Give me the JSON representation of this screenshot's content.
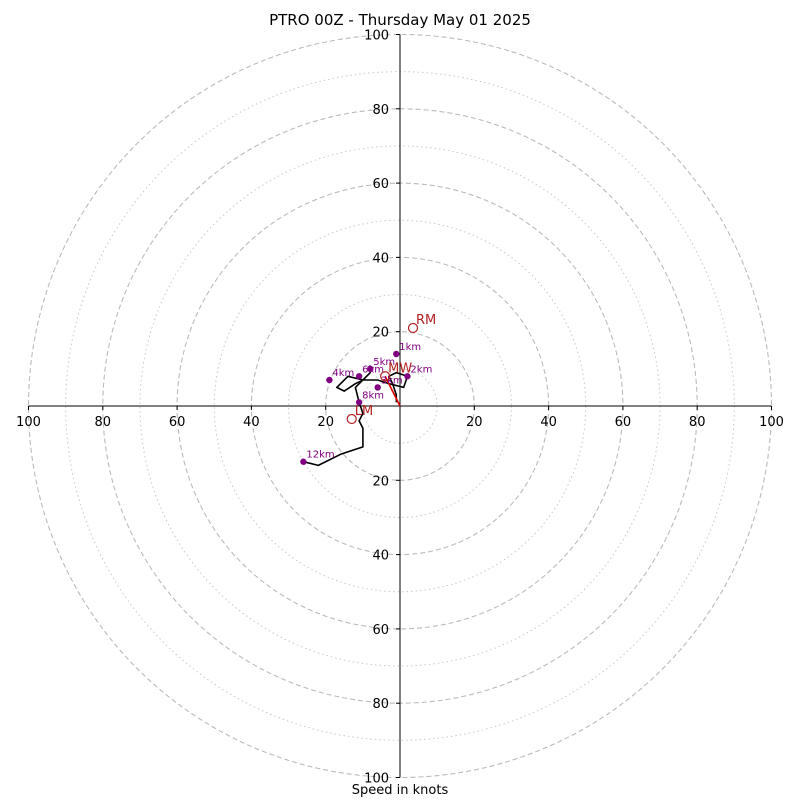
{
  "chart_data": {
    "type": "scatter",
    "title": "PTRO 00Z - Thursday May 01 2025",
    "xlabel": "Speed in knots",
    "ylabel": "",
    "xlim": [
      -100,
      100
    ],
    "ylim": [
      -100,
      100
    ],
    "rings_major": [
      20,
      40,
      60,
      80,
      100
    ],
    "rings_minor": [
      10,
      30,
      50,
      70,
      90
    ],
    "grid": true,
    "x_ticks": [
      {
        "v": -100,
        "label": "100"
      },
      {
        "v": -80,
        "label": "80"
      },
      {
        "v": -60,
        "label": "60"
      },
      {
        "v": -40,
        "label": "40"
      },
      {
        "v": -20,
        "label": "20"
      },
      {
        "v": 20,
        "label": "20"
      },
      {
        "v": 40,
        "label": "40"
      },
      {
        "v": 60,
        "label": "60"
      },
      {
        "v": 80,
        "label": "80"
      },
      {
        "v": 100,
        "label": "100"
      }
    ],
    "y_ticks": [
      {
        "v": 100,
        "label": "100"
      },
      {
        "v": 80,
        "label": "80"
      },
      {
        "v": 60,
        "label": "60"
      },
      {
        "v": 40,
        "label": "40"
      },
      {
        "v": 20,
        "label": "20"
      },
      {
        "v": -20,
        "label": "20"
      },
      {
        "v": -40,
        "label": "40"
      },
      {
        "v": -60,
        "label": "60"
      },
      {
        "v": -80,
        "label": "80"
      },
      {
        "v": -100,
        "label": "100"
      }
    ],
    "hodograph": [
      [
        -1,
        1
      ],
      [
        -1,
        3
      ],
      [
        -2,
        6
      ],
      [
        -3,
        8
      ],
      [
        -1,
        9
      ],
      [
        2,
        8
      ],
      [
        1,
        5
      ],
      [
        -3,
        6
      ],
      [
        -6,
        7
      ],
      [
        -10,
        7
      ],
      [
        -14,
        8
      ],
      [
        -17,
        5
      ],
      [
        -15,
        4
      ],
      [
        -12,
        6
      ],
      [
        -10,
        7
      ],
      [
        -8,
        9
      ],
      [
        -12,
        5
      ],
      [
        -11,
        1
      ],
      [
        -10,
        -2
      ],
      [
        -11,
        -4
      ],
      [
        -10,
        -6
      ],
      [
        -10,
        -11
      ],
      [
        -16,
        -13
      ],
      [
        -22,
        -16
      ],
      [
        -26,
        -15
      ]
    ],
    "height_markers": [
      {
        "label": "1km",
        "x": -1,
        "y": 14
      },
      {
        "label": "2km",
        "x": 2,
        "y": 8
      },
      {
        "label": "3km",
        "x": -6,
        "y": 5
      },
      {
        "label": "4km",
        "x": -19,
        "y": 7
      },
      {
        "label": "5km",
        "x": -8,
        "y": 10
      },
      {
        "label": "6km",
        "x": -11,
        "y": 8
      },
      {
        "label": "8km",
        "x": -11,
        "y": 1
      },
      {
        "label": "12km",
        "x": -26,
        "y": -15
      }
    ],
    "storm_motion": [
      {
        "label": "RM",
        "x": 3.5,
        "y": 21
      },
      {
        "label": "LM",
        "x": -13,
        "y": -3.5
      },
      {
        "label": "MW",
        "x": -4,
        "y": 8
      }
    ],
    "storm_motion_vector": {
      "from": [
        0,
        0
      ],
      "to": [
        -4,
        8
      ]
    },
    "colors": {
      "hodograph_line": "#000000",
      "height_marker": "#800080",
      "storm_motion": "#b22222",
      "motion_vector": "#e00000",
      "grid": "#bbbbbb"
    }
  }
}
